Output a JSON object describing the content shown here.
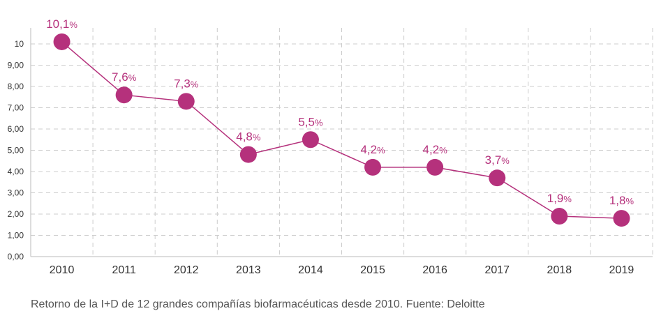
{
  "chart_data": {
    "type": "line",
    "categories": [
      "2010",
      "2011",
      "2012",
      "2013",
      "2014",
      "2015",
      "2016",
      "2017",
      "2018",
      "2019"
    ],
    "series": [
      {
        "values": [
          10.1,
          7.6,
          7.3,
          4.8,
          5.5,
          4.2,
          4.2,
          3.7,
          1.9,
          1.8
        ],
        "data_labels": [
          "10,1",
          "7,6",
          "7,3",
          "4,8",
          "5,5",
          "4,2",
          "4,2",
          "3,7",
          "1,9",
          "1,8"
        ],
        "label_suffix": "%"
      }
    ],
    "y_ticks": [
      "0,00",
      "1,00",
      "2,00",
      "3,00",
      "4,00",
      "5,00",
      "6,00",
      "7,00",
      "8,00",
      "9,00",
      "10"
    ],
    "ylim": [
      0,
      10
    ],
    "grid": "dashed",
    "title": "",
    "xlabel": "",
    "ylabel": "",
    "colors": {
      "series": "#b5317c",
      "grid": "#cccccc",
      "axis": "#bbbbbb"
    }
  },
  "caption": "Retorno de la I+D de 12 grandes compañías biofarmacéuticas desde 2010. Fuente: Deloitte"
}
